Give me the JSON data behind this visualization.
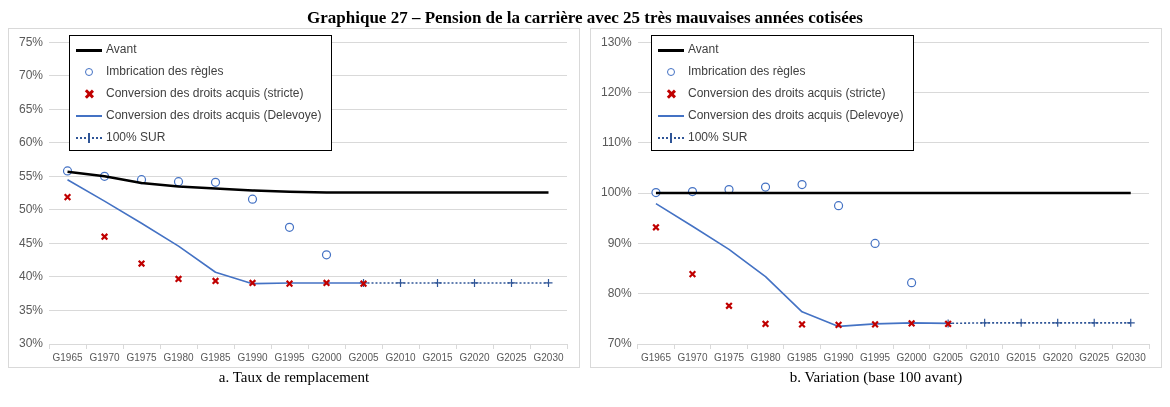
{
  "chart_data": [
    {
      "type": "line",
      "title": "Graphique 27 – Pension de la carrière avec 25 très mauvaises années cotisées",
      "annotations": [
        "a. Taux de remplacement"
      ],
      "categories": [
        "G1965",
        "G1970",
        "G1975",
        "G1980",
        "G1985",
        "G1990",
        "G1995",
        "G2000",
        "G2005",
        "G2010",
        "G2015",
        "G2020",
        "G2025",
        "G2030"
      ],
      "ylim": [
        30,
        75
      ],
      "yticks": [
        {
          "value": 30,
          "label": "30%"
        },
        {
          "value": 35,
          "label": "35%"
        },
        {
          "value": 40,
          "label": "40%"
        },
        {
          "value": 45,
          "label": "45%"
        },
        {
          "value": 50,
          "label": "50%"
        },
        {
          "value": 55,
          "label": "55%"
        },
        {
          "value": 60,
          "label": "60%"
        },
        {
          "value": 65,
          "label": "65%"
        },
        {
          "value": 70,
          "label": "70%"
        },
        {
          "value": 75,
          "label": "75%"
        }
      ],
      "grid": "y",
      "legend": "top left",
      "series": [
        {
          "name": "Avant",
          "color": "#000000",
          "marker": "none",
          "line_style": "solid",
          "values": [
            55.7,
            55.0,
            54.0,
            53.5,
            53.2,
            52.9,
            52.7,
            52.6,
            52.6,
            52.6,
            52.6,
            52.6,
            52.6,
            52.6
          ]
        },
        {
          "name": "Imbrication des règles",
          "type": "scatter",
          "color": "#4472c4",
          "marker": "circle",
          "values": [
            55.8,
            55.0,
            54.5,
            54.2,
            54.1,
            51.6,
            47.4,
            43.3,
            null,
            null,
            null,
            null,
            null,
            null
          ]
        },
        {
          "name": "Conversion des droits acquis (stricte)",
          "type": "scatter",
          "color": "#c00000",
          "marker": "cross",
          "values": [
            51.9,
            46.0,
            42.0,
            39.7,
            39.4,
            39.1,
            39.0,
            39.1,
            39.0,
            null,
            null,
            null,
            null,
            null
          ]
        },
        {
          "name": "Conversion des droits acquis (Delevoye)",
          "color": "#4472c4",
          "marker": "none",
          "line_style": "solid",
          "values": [
            54.5,
            51.3,
            48.0,
            44.6,
            40.7,
            39.0,
            39.1,
            39.1,
            39.1,
            null,
            null,
            null,
            null,
            null
          ]
        },
        {
          "name": "100% SUR",
          "color": "#2f5597",
          "marker": "cross",
          "line_style": "dotted",
          "values": [
            null,
            null,
            null,
            null,
            null,
            null,
            null,
            null,
            39.1,
            39.1,
            39.1,
            39.1,
            39.1,
            39.1
          ]
        }
      ]
    },
    {
      "type": "line",
      "annotations": [
        "b. Variation (base 100 avant)"
      ],
      "categories": [
        "G1965",
        "G1970",
        "G1975",
        "G1980",
        "G1985",
        "G1990",
        "G1995",
        "G2000",
        "G2005",
        "G2010",
        "G2015",
        "G2020",
        "G2025",
        "G2030"
      ],
      "ylim": [
        70,
        130
      ],
      "yticks": [
        {
          "value": 70,
          "label": "70%"
        },
        {
          "value": 80,
          "label": "80%"
        },
        {
          "value": 90,
          "label": "90%"
        },
        {
          "value": 100,
          "label": "100%"
        },
        {
          "value": 110,
          "label": "110%"
        },
        {
          "value": 120,
          "label": "120%"
        },
        {
          "value": 130,
          "label": "130%"
        }
      ],
      "grid": "y",
      "legend": "top left",
      "series": [
        {
          "name": "Avant",
          "color": "#000000",
          "marker": "none",
          "line_style": "solid",
          "values": [
            100,
            100,
            100,
            100,
            100,
            100,
            100,
            100,
            100,
            100,
            100,
            100,
            100,
            100
          ]
        },
        {
          "name": "Imbrication des règles",
          "type": "scatter",
          "color": "#4472c4",
          "marker": "circle",
          "values": [
            100.1,
            100.3,
            100.7,
            101.2,
            101.7,
            97.5,
            90.0,
            82.2,
            null,
            null,
            null,
            null,
            null,
            null
          ]
        },
        {
          "name": "Conversion des droits acquis (stricte)",
          "type": "scatter",
          "color": "#c00000",
          "marker": "cross",
          "values": [
            93.2,
            83.9,
            77.6,
            74.0,
            73.9,
            73.8,
            73.9,
            74.1,
            74.0,
            null,
            null,
            null,
            null,
            null
          ]
        },
        {
          "name": "Conversion des droits acquis (Delevoye)",
          "color": "#4472c4",
          "marker": "none",
          "line_style": "solid",
          "values": [
            97.9,
            93.4,
            88.8,
            83.4,
            76.4,
            73.5,
            74.0,
            74.2,
            74.1,
            null,
            null,
            null,
            null,
            null
          ]
        },
        {
          "name": "100% SUR",
          "color": "#2f5597",
          "marker": "cross",
          "line_style": "dotted",
          "values": [
            null,
            null,
            null,
            null,
            null,
            null,
            null,
            null,
            74.1,
            74.2,
            74.2,
            74.2,
            74.2,
            74.2
          ]
        }
      ]
    }
  ]
}
